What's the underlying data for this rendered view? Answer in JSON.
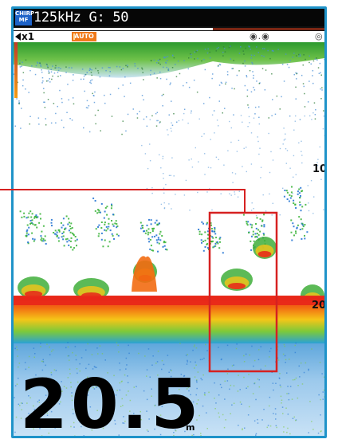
{
  "header": {
    "mode_badge_line1": "CHIRP",
    "mode_badge_line2": "MF",
    "frequency_gain": "125kHz G: 50"
  },
  "toolbar": {
    "zoom": "x1",
    "gain_mode": "AUTO",
    "icons": [
      "zoom-left-arrow-icon",
      "display-dots-icon",
      "settings-icon"
    ]
  },
  "echogram": {
    "depth_scale_labels": [
      "10",
      "20"
    ],
    "highlight_box_color": "#d62121"
  },
  "depth": {
    "value": "20.5",
    "unit": "m"
  },
  "colors": {
    "frame": "#1f93c9",
    "badge": "#1e63c8",
    "auto": "#f07a1a",
    "bottom_red": "#e8251a",
    "bottom_orange": "#f39c12",
    "echo_green": "#34b233",
    "echo_blue": "#1b6fd1"
  }
}
